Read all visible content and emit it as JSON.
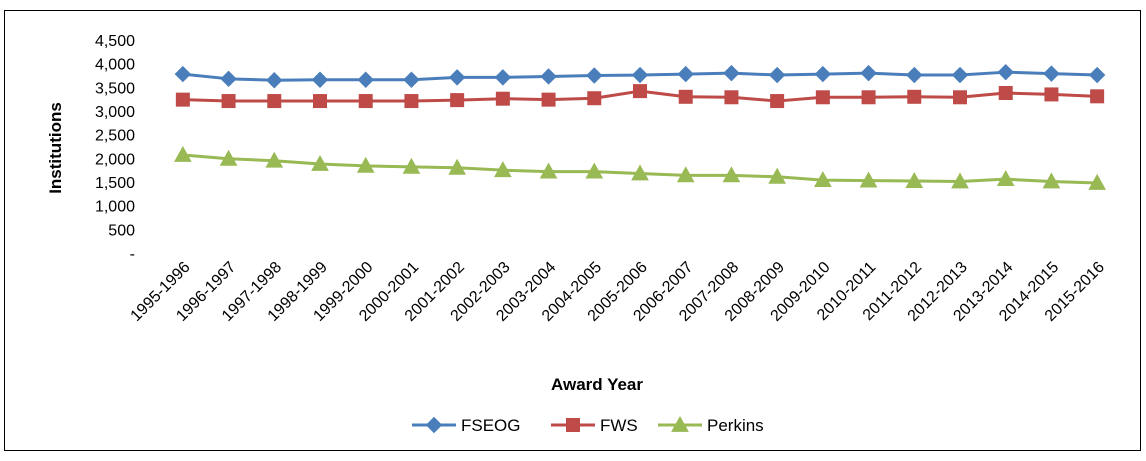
{
  "chart_data": {
    "type": "line",
    "title": "",
    "xlabel": "Award Year",
    "ylabel": "Institutions",
    "ylim": [
      0,
      4500
    ],
    "yticks": [
      0,
      500,
      1000,
      1500,
      2000,
      2500,
      3000,
      3500,
      4000,
      4500
    ],
    "ytick_labels": [
      "-",
      "500",
      "1,000",
      "1,500",
      "2,000",
      "2,500",
      "3,000",
      "3,500",
      "4,000",
      "4,500"
    ],
    "grid": false,
    "legend_position": "bottom",
    "categories": [
      "1995-1996",
      "1996-1997",
      "1997-1998",
      "1998-1999",
      "1999-2000",
      "2000-2001",
      "2001-2002",
      "2002-2003",
      "2003-2004",
      "2004-2005",
      "2005-2006",
      "2006-2007",
      "2007-2008",
      "2008-2009",
      "2009-2010",
      "2010-2011",
      "2011-2012",
      "2012-2013",
      "2013-2014",
      "2014-2015",
      "2015-2016"
    ],
    "series": [
      {
        "name": "FSEOG",
        "color": "#4a7ebb",
        "marker": "diamond",
        "values": [
          3780,
          3680,
          3650,
          3660,
          3660,
          3660,
          3710,
          3710,
          3730,
          3750,
          3760,
          3780,
          3800,
          3760,
          3780,
          3800,
          3760,
          3760,
          3820,
          3790,
          3760
        ]
      },
      {
        "name": "FWS",
        "color": "#be4b48",
        "marker": "square",
        "values": [
          3240,
          3210,
          3210,
          3210,
          3210,
          3210,
          3230,
          3260,
          3240,
          3270,
          3420,
          3300,
          3290,
          3210,
          3290,
          3290,
          3300,
          3290,
          3380,
          3350,
          3310
        ]
      },
      {
        "name": "Perkins",
        "color": "#98b954",
        "marker": "triangle",
        "values": [
          2070,
          1990,
          1950,
          1880,
          1840,
          1820,
          1800,
          1750,
          1720,
          1720,
          1680,
          1640,
          1640,
          1610,
          1540,
          1530,
          1520,
          1510,
          1560,
          1510,
          1480
        ]
      }
    ]
  }
}
